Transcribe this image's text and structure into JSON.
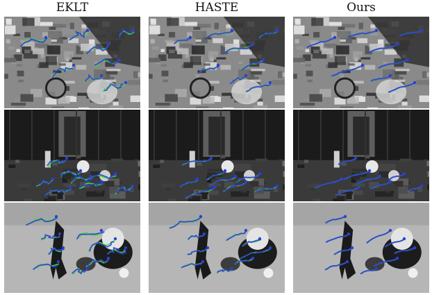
{
  "figure": {
    "columns": [
      {
        "title": "EKLT"
      },
      {
        "title": "HASTE"
      },
      {
        "title": "Ours"
      }
    ],
    "rows": [
      {
        "scene": "gray-circuit-boards"
      },
      {
        "scene": "dark-room-toys"
      },
      {
        "scene": "gray-floor-toys"
      }
    ],
    "colors": {
      "track_blue": "#2b3fd6",
      "track_green": "#3ee03a",
      "background": "#ffffff"
    }
  }
}
